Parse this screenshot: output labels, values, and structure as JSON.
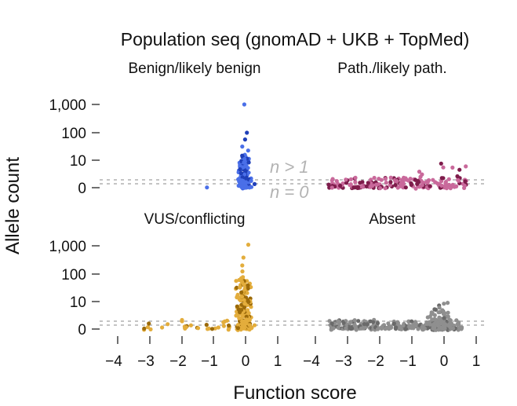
{
  "chart_data": {
    "type": "scatter",
    "title": "Population seq (gnomAD + UKB + TopMed)",
    "xlabel": "Function score",
    "ylabel": "Allele count",
    "xlim": [
      -4.4,
      1.0
    ],
    "x_ticks": [
      "−4",
      "−3",
      "−2",
      "−1",
      "0",
      "1"
    ],
    "y_ticks": [
      "0",
      "10",
      "100",
      "1,000"
    ],
    "annotations": [
      "n > 1",
      "n = 0"
    ],
    "panels": [
      {
        "name": "Benign/likely benign",
        "color": "#4a6fe8",
        "dark_color": "#1f3fb8",
        "clusters": [
          {
            "x": [
              -0.25,
              0.15
            ],
            "n": 130,
            "y_max": 1.2,
            "skew": 0.8
          },
          {
            "x": [
              -0.3,
              0.35
            ],
            "n": 22,
            "y_max": 0.35,
            "skew": 1.0
          },
          {
            "x": [
              -1.2,
              -1.2
            ],
            "n": 1,
            "y_max": 0.05,
            "skew": 1.0
          }
        ],
        "upper_points": [
          3.0,
          2.0,
          1.7,
          1.5,
          1.3
        ]
      },
      {
        "name": "Path./likely path.",
        "color": "#c9699b",
        "dark_color": "#7e1c4b",
        "clusters": [
          {
            "x": [
              -3.6,
              0.7
            ],
            "n": 170,
            "y_max": 0.35,
            "skew": 1.0
          },
          {
            "x": [
              -0.9,
              0.7
            ],
            "n": 14,
            "y_max": 0.9,
            "skew": 1.0
          }
        ],
        "upper_points": []
      },
      {
        "name": "VUS/conflicting",
        "color": "#e3ad3c",
        "dark_color": "#9b6a0a",
        "clusters": [
          {
            "x": [
              -0.35,
              0.2
            ],
            "n": 180,
            "y_max": 1.8,
            "skew": 0.9
          },
          {
            "x": [
              -3.3,
              -0.4
            ],
            "n": 32,
            "y_max": 0.3,
            "skew": 1.0
          },
          {
            "x": [
              -0.4,
              0.35
            ],
            "n": 26,
            "y_max": 0.35,
            "skew": 1.0
          }
        ],
        "upper_points": [
          3.0,
          2.6,
          2.3,
          2.1,
          1.9,
          1.7,
          1.6
        ]
      },
      {
        "name": "Absent",
        "color": "#8f8f8f",
        "dark_color": "#6a6a6a",
        "clusters": [
          {
            "x": [
              -3.6,
              0.6
            ],
            "n": 240,
            "y_max": 0.3,
            "skew": 1.0
          },
          {
            "x": [
              -0.7,
              0.45
            ],
            "n": 70,
            "y_max": 0.75,
            "skew": 1.0
          },
          {
            "x": [
              -0.25,
              0.15
            ],
            "n": 14,
            "y_max": 0.95,
            "skew": 1.0
          }
        ],
        "upper_points": []
      }
    ]
  }
}
